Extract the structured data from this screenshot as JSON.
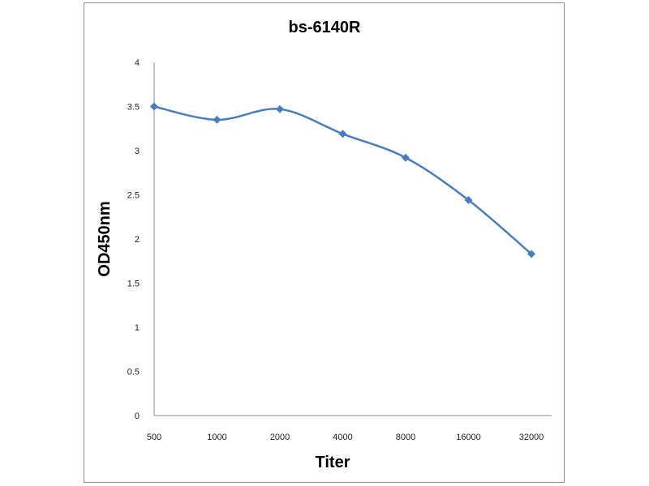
{
  "chart_data": {
    "type": "line",
    "title": "bs-6140R",
    "xlabel": "Titer",
    "ylabel": "OD450nm",
    "categories": [
      "500",
      "1000",
      "2000",
      "4000",
      "8000",
      "16000",
      "32000"
    ],
    "series": [
      {
        "values": [
          3.5,
          3.35,
          3.47,
          3.19,
          2.92,
          2.44,
          1.83
        ]
      }
    ],
    "ylim": [
      0,
      4
    ],
    "yticks": [
      "0",
      "0.5",
      "1",
      "1.5",
      "2",
      "2.5",
      "3",
      "3.5",
      "4"
    ],
    "grid": false,
    "legend": "none",
    "smooth": true,
    "colors": {
      "series": "#4a7ebb"
    }
  }
}
